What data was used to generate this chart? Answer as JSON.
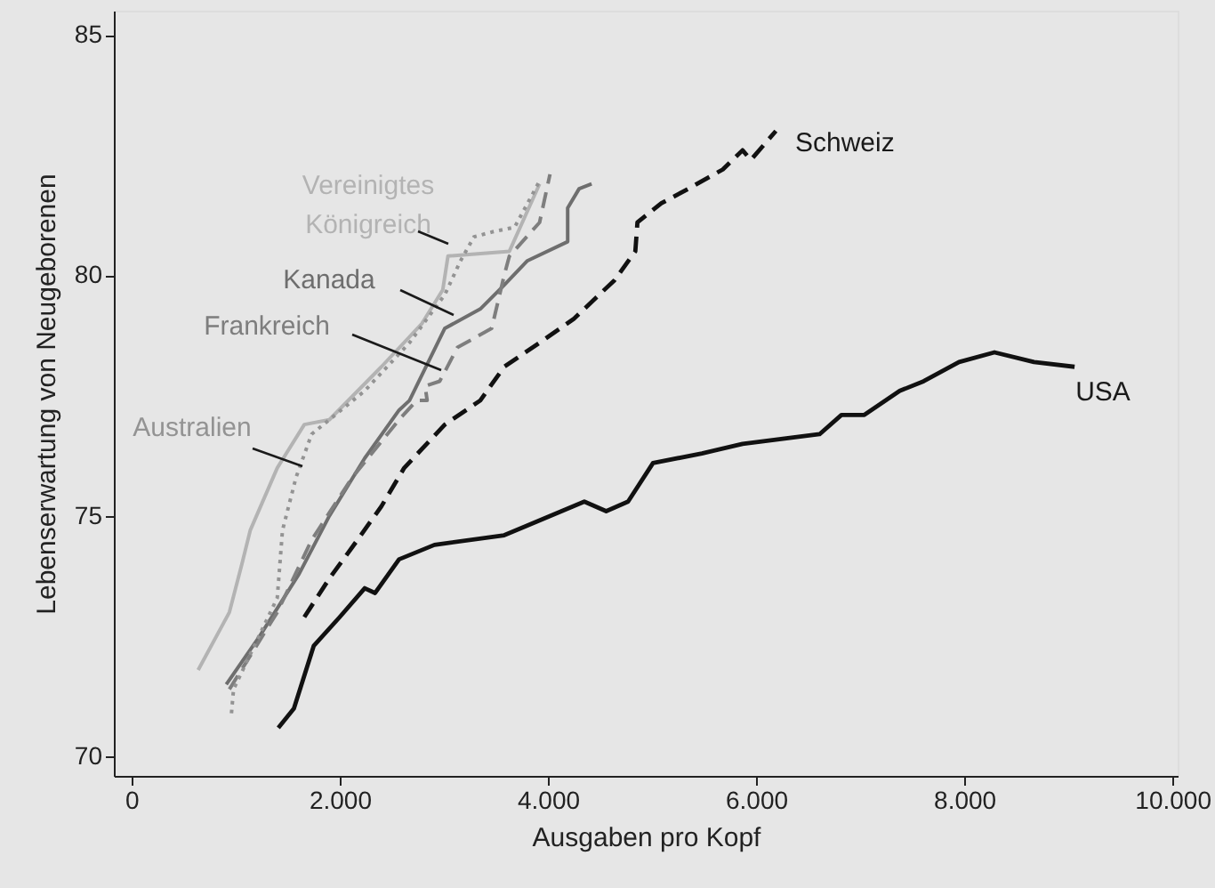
{
  "chart_data": {
    "type": "line",
    "xlabel": "Ausgaben pro Kopf",
    "ylabel": "Lebenserwartung von Neugeborenen",
    "xlim": [
      -170,
      10050
    ],
    "ylim": [
      69.6,
      85.5
    ],
    "xticks": [
      0,
      {
        "value": 2000,
        "label": "2.000"
      },
      {
        "value": 4000,
        "label": "4.000"
      },
      {
        "value": 6000,
        "label": "6.000"
      },
      {
        "value": 8000,
        "label": "8.000"
      },
      {
        "value": 10000,
        "label": "10.000"
      }
    ],
    "yticks": [
      70,
      75,
      80,
      85
    ],
    "grid": false,
    "marker": "none",
    "series": [
      {
        "name": "Vereinigtes Königreich",
        "color": "#b3b3b3",
        "line_style": "solid",
        "x": [
          640,
          940,
          1060,
          1140,
          1400,
          1660,
          1900,
          2400,
          2790,
          2990,
          3040,
          3630,
          3920
        ],
        "values": [
          71.8,
          73.0,
          74.0,
          74.7,
          76.0,
          76.9,
          77.0,
          78.1,
          79.0,
          79.7,
          80.4,
          80.5,
          81.9
        ]
      },
      {
        "name": "Kanada",
        "color": "#6e6e6e",
        "line_style": "solid",
        "x": [
          910,
          1230,
          1610,
          1900,
          2240,
          2570,
          2670,
          3010,
          3350,
          3580,
          3800,
          4190,
          4190,
          4300,
          4420
        ],
        "values": [
          71.5,
          72.5,
          73.8,
          75.0,
          76.2,
          77.2,
          77.4,
          78.9,
          79.3,
          79.8,
          80.3,
          80.7,
          81.4,
          81.8,
          81.9
        ]
      },
      {
        "name": "Frankreich",
        "color": "#7e7e7e",
        "line_style": "dashed",
        "x": [
          940,
          1400,
          1730,
          2120,
          2570,
          2740,
          2840,
          2820,
          2960,
          3010,
          3130,
          3460,
          3580,
          3630,
          3920,
          4020
        ],
        "values": [
          71.4,
          73.0,
          74.5,
          75.8,
          77.0,
          77.4,
          77.4,
          77.7,
          77.8,
          78.0,
          78.5,
          78.9,
          80.0,
          80.4,
          81.1,
          82.1
        ]
      },
      {
        "name": "Australien",
        "color": "#939393",
        "line_style": "dotted",
        "x": [
          960,
          980,
          1400,
          1450,
          1580,
          1730,
          2240,
          2670,
          3010,
          3160,
          3290,
          3460,
          3680,
          3930
        ],
        "values": [
          70.9,
          71.4,
          73.3,
          74.7,
          75.8,
          76.7,
          77.6,
          78.6,
          79.6,
          80.3,
          80.8,
          80.9,
          81.0,
          82.0
        ]
      },
      {
        "name": "Schweiz",
        "color": "#111111",
        "line_style": "dashed",
        "x": [
          1660,
          1900,
          2170,
          2400,
          2620,
          3010,
          3350,
          3580,
          3920,
          4250,
          4640,
          4840,
          4860,
          5090,
          5350,
          5680,
          5870,
          5950,
          6190
        ],
        "values": [
          72.9,
          73.7,
          74.5,
          75.2,
          76.0,
          76.9,
          77.4,
          78.1,
          78.6,
          79.1,
          79.9,
          80.5,
          81.1,
          81.5,
          81.8,
          82.2,
          82.6,
          82.4,
          83.0
        ]
      },
      {
        "name": "USA",
        "color": "#111111",
        "line_style": "solid",
        "x": [
          1410,
          1560,
          1750,
          2000,
          2240,
          2340,
          2570,
          2910,
          3580,
          3800,
          4350,
          4560,
          4770,
          5010,
          5480,
          5870,
          6610,
          6820,
          7040,
          7380,
          7610,
          7950,
          8290,
          8670,
          9060
        ],
        "values": [
          70.6,
          71.0,
          72.3,
          72.9,
          73.5,
          73.4,
          74.1,
          74.4,
          74.6,
          74.8,
          75.3,
          75.1,
          75.3,
          76.1,
          76.3,
          76.5,
          76.7,
          77.1,
          77.1,
          77.6,
          77.8,
          78.2,
          78.4,
          78.2,
          78.1
        ]
      }
    ]
  }
}
